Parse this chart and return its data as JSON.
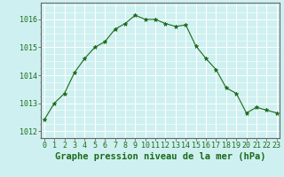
{
  "hours": [
    0,
    1,
    2,
    3,
    4,
    5,
    6,
    7,
    8,
    9,
    10,
    11,
    12,
    13,
    14,
    15,
    16,
    17,
    18,
    19,
    20,
    21,
    22,
    23
  ],
  "pressure": [
    1012.4,
    1013.0,
    1013.35,
    1014.1,
    1014.6,
    1015.0,
    1015.2,
    1015.65,
    1015.85,
    1016.15,
    1016.0,
    1016.0,
    1015.85,
    1015.75,
    1015.8,
    1015.05,
    1014.6,
    1014.2,
    1013.55,
    1013.35,
    1012.65,
    1012.85,
    1012.75,
    1012.65
  ],
  "line_color": "#1a6b1a",
  "marker": "*",
  "bg_color": "#cff0f0",
  "grid_color": "#ffffff",
  "ylabel_ticks": [
    1012,
    1013,
    1014,
    1015,
    1016
  ],
  "ylim": [
    1011.75,
    1016.6
  ],
  "xlabel_label": "Graphe pression niveau de la mer (hPa)",
  "xlabel_color": "#1a6b1a",
  "tick_label_color": "#1a6b1a",
  "spine_color": "#666666",
  "tick_fontsize": 6.0,
  "xlabel_fontsize": 7.5
}
